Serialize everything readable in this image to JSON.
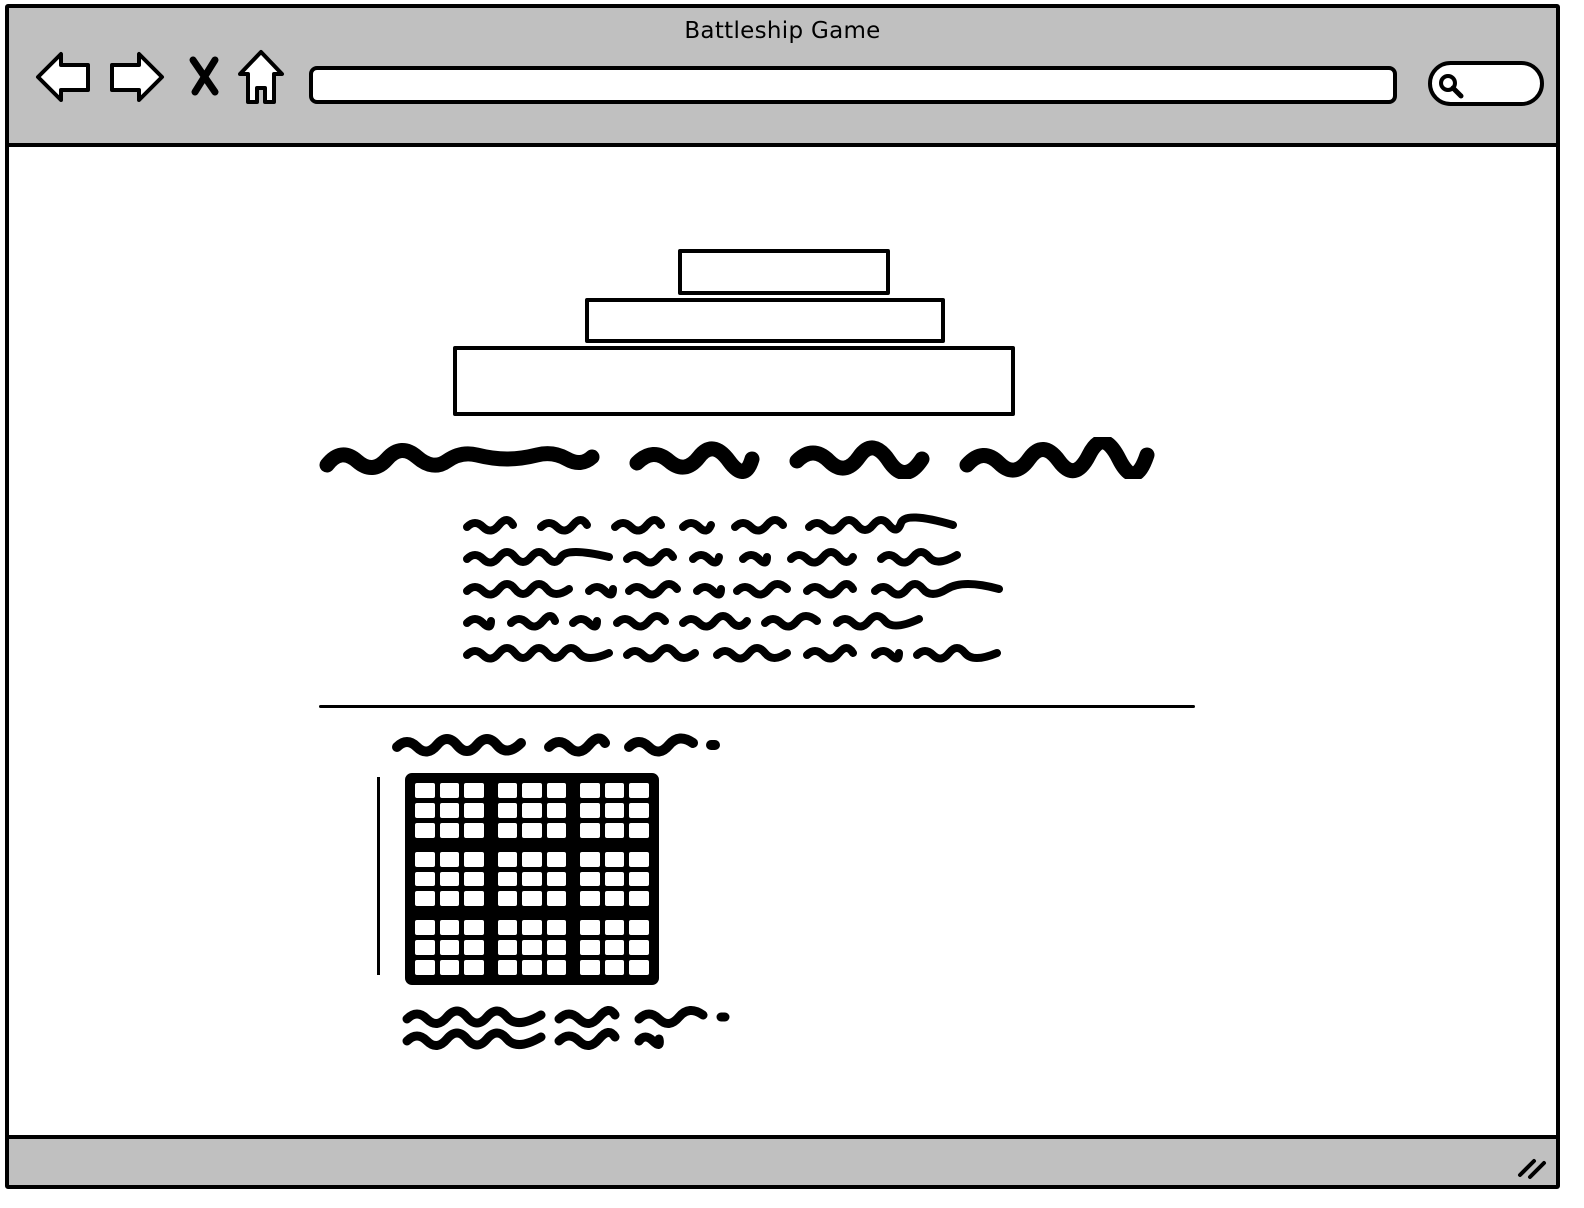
{
  "window": {
    "title": "Battleship Game"
  },
  "toolbar": {
    "back_icon": "back-arrow-icon",
    "forward_icon": "forward-arrow-icon",
    "stop_icon": "close-icon",
    "home_icon": "home-icon",
    "address_value": "",
    "search_value": "",
    "search_icon": "search-icon"
  },
  "main": {
    "logo_stack": [
      "box-top",
      "box-middle",
      "box-bottom"
    ],
    "heading_placeholder": "scribbled-heading",
    "paragraph_lines": 5,
    "grid": {
      "blocks_rows": 3,
      "blocks_cols": 3,
      "cells_per_block_rows": 3,
      "cells_per_block_cols": 3
    }
  },
  "statusbar": {
    "resize_icon": "resize-grip-icon"
  },
  "colors": {
    "chrome": "#c0c0c0",
    "ink": "#000000",
    "paper": "#ffffff"
  }
}
